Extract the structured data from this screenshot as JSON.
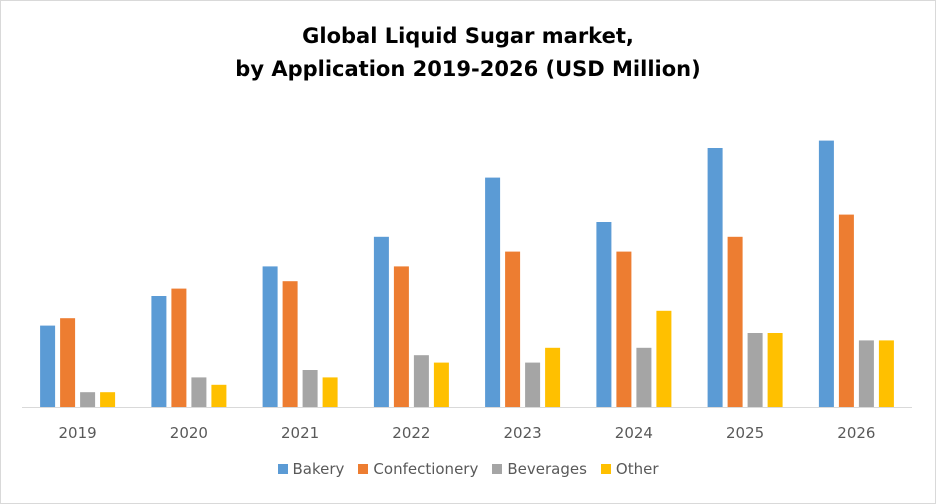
{
  "chart_data": {
    "type": "bar",
    "title_line1": "Global Liquid Sugar market,",
    "title_line2": "by Application 2019-2026 (USD Million)",
    "xlabel": "",
    "ylabel": "",
    "categories": [
      "2019",
      "2020",
      "2021",
      "2022",
      "2023",
      "2024",
      "2025",
      "2026"
    ],
    "series": [
      {
        "name": "Bakery",
        "color": "#5b9bd5",
        "values": [
          11,
          15,
          19,
          23,
          31,
          25,
          35,
          36
        ]
      },
      {
        "name": "Confectionery",
        "color": "#ed7d31",
        "values": [
          12,
          16,
          17,
          19,
          21,
          21,
          23,
          26
        ]
      },
      {
        "name": "Beverages",
        "color": "#a5a5a5",
        "values": [
          2,
          4,
          5,
          7,
          6,
          8,
          10,
          9
        ]
      },
      {
        "name": "Other",
        "color": "#ffc000",
        "values": [
          2,
          3,
          4,
          6,
          8,
          13,
          10,
          9
        ]
      }
    ],
    "ylim": [
      0,
      40
    ],
    "y_axis_visible": false,
    "grid": false,
    "legend": "bottom"
  }
}
